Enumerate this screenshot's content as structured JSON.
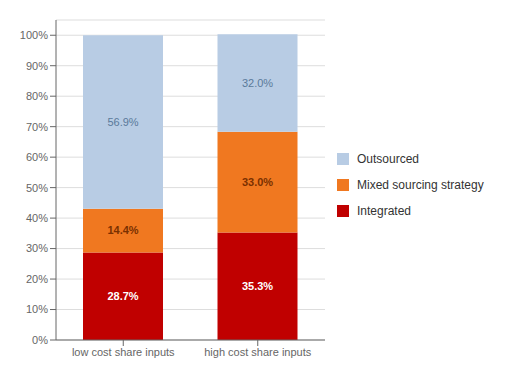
{
  "chart_data": {
    "type": "bar",
    "stacked": true,
    "categories": [
      "low cost share inputs",
      "high cost share inputs"
    ],
    "series": [
      {
        "name": "Integrated",
        "color": "#c00000",
        "values": [
          28.7,
          35.3
        ],
        "value_labels": [
          "28.7%",
          "35.3%"
        ]
      },
      {
        "name": "Mixed sourcing strategy",
        "color": "#f07820",
        "values": [
          14.4,
          33.0
        ],
        "value_labels": [
          "14.4%",
          "33.0%"
        ]
      },
      {
        "name": "Outsourced",
        "color": "#b8cce4",
        "values": [
          56.9,
          32.0
        ],
        "value_labels": [
          "56.9%",
          "32.0%"
        ]
      }
    ],
    "ylim": [
      0,
      105
    ],
    "yticks": [
      {
        "value": 0,
        "label": "0%"
      },
      {
        "value": 10,
        "label": "10%"
      },
      {
        "value": 20,
        "label": "20%"
      },
      {
        "value": 30,
        "label": "30%"
      },
      {
        "value": 40,
        "label": "40%"
      },
      {
        "value": 50,
        "label": "50%"
      },
      {
        "value": 60,
        "label": "60%"
      },
      {
        "value": 70,
        "label": "70%"
      },
      {
        "value": 80,
        "label": "80%"
      },
      {
        "value": 90,
        "label": "90%"
      },
      {
        "value": 100,
        "label": "100%"
      }
    ],
    "grid": true,
    "legend": "right",
    "data_labels": true
  }
}
